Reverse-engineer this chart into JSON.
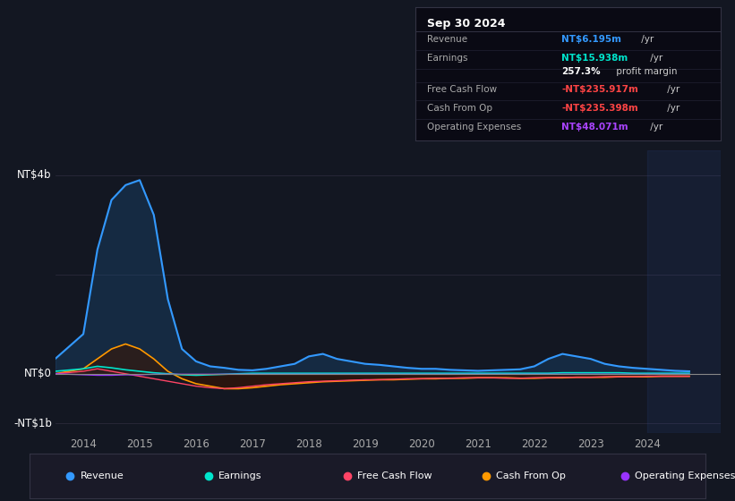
{
  "bg_color": "#131722",
  "plot_bg_color": "#131722",
  "title_box": {
    "date": "Sep 30 2024",
    "rows": [
      {
        "label": "Revenue",
        "value": "NT$6.195m",
        "value_color": "#3399ff",
        "suffix": " /yr"
      },
      {
        "label": "Earnings",
        "value": "NT$15.938m",
        "value_color": "#00e5cc",
        "suffix": " /yr"
      },
      {
        "label": "",
        "value": "257.3%",
        "value_color": "#ffffff",
        "suffix": " profit margin"
      },
      {
        "label": "Free Cash Flow",
        "value": "-NT$235.917m",
        "value_color": "#ff4444",
        "suffix": " /yr"
      },
      {
        "label": "Cash From Op",
        "value": "-NT$235.398m",
        "value_color": "#ff4444",
        "suffix": " /yr"
      },
      {
        "label": "Operating Expenses",
        "value": "NT$48.071m",
        "value_color": "#aa44ff",
        "suffix": " /yr"
      }
    ]
  },
  "ylabel_top": "NT$4b",
  "ylabel_zero": "NT$0",
  "ylabel_bottom": "-NT$1b",
  "x_ticks": [
    2014,
    2015,
    2016,
    2017,
    2018,
    2019,
    2020,
    2021,
    2022,
    2023,
    2024
  ],
  "legend": [
    {
      "label": "Revenue",
      "color": "#3399ff"
    },
    {
      "label": "Earnings",
      "color": "#00e5cc"
    },
    {
      "label": "Free Cash Flow",
      "color": "#ff4466"
    },
    {
      "label": "Cash From Op",
      "color": "#ff9900"
    },
    {
      "label": "Operating Expenses",
      "color": "#9933ff"
    }
  ],
  "series": {
    "x": [
      2013.5,
      2014.0,
      2014.25,
      2014.5,
      2014.75,
      2015.0,
      2015.25,
      2015.5,
      2015.75,
      2016.0,
      2016.25,
      2016.5,
      2016.75,
      2017.0,
      2017.25,
      2017.5,
      2017.75,
      2018.0,
      2018.25,
      2018.5,
      2018.75,
      2019.0,
      2019.25,
      2019.5,
      2019.75,
      2020.0,
      2020.25,
      2020.5,
      2020.75,
      2021.0,
      2021.25,
      2021.5,
      2021.75,
      2022.0,
      2022.25,
      2022.5,
      2022.75,
      2023.0,
      2023.25,
      2023.5,
      2023.75,
      2024.0,
      2024.25,
      2024.5,
      2024.75
    ],
    "revenue": [
      0.3,
      0.8,
      2.5,
      3.5,
      3.8,
      3.9,
      3.2,
      1.5,
      0.5,
      0.25,
      0.15,
      0.12,
      0.08,
      0.07,
      0.1,
      0.15,
      0.2,
      0.35,
      0.4,
      0.3,
      0.25,
      0.2,
      0.18,
      0.15,
      0.12,
      0.1,
      0.1,
      0.08,
      0.07,
      0.06,
      0.07,
      0.08,
      0.09,
      0.15,
      0.3,
      0.4,
      0.35,
      0.3,
      0.2,
      0.15,
      0.12,
      0.1,
      0.08,
      0.06,
      0.05
    ],
    "earnings": [
      0.05,
      0.1,
      0.15,
      0.12,
      0.08,
      0.05,
      0.02,
      0.0,
      -0.02,
      -0.03,
      -0.02,
      -0.01,
      0.0,
      0.01,
      0.01,
      0.01,
      0.01,
      0.01,
      0.01,
      0.01,
      0.01,
      0.01,
      0.01,
      0.01,
      0.01,
      0.01,
      0.01,
      0.01,
      0.01,
      0.01,
      0.01,
      0.01,
      0.01,
      0.01,
      0.01,
      0.02,
      0.02,
      0.02,
      0.02,
      0.02,
      0.01,
      0.01,
      0.01,
      0.01,
      0.01
    ],
    "cashfromop": [
      0.0,
      0.1,
      0.3,
      0.5,
      0.6,
      0.5,
      0.3,
      0.05,
      -0.1,
      -0.2,
      -0.25,
      -0.3,
      -0.3,
      -0.28,
      -0.25,
      -0.22,
      -0.2,
      -0.18,
      -0.16,
      -0.15,
      -0.14,
      -0.13,
      -0.12,
      -0.12,
      -0.11,
      -0.1,
      -0.1,
      -0.09,
      -0.09,
      -0.08,
      -0.08,
      -0.08,
      -0.09,
      -0.09,
      -0.08,
      -0.08,
      -0.07,
      -0.07,
      -0.07,
      -0.06,
      -0.06,
      -0.06,
      -0.05,
      -0.05,
      -0.05
    ],
    "freecashflow": [
      0.0,
      0.05,
      0.1,
      0.05,
      0.0,
      -0.05,
      -0.1,
      -0.15,
      -0.2,
      -0.25,
      -0.28,
      -0.3,
      -0.28,
      -0.25,
      -0.22,
      -0.2,
      -0.18,
      -0.16,
      -0.15,
      -0.14,
      -0.13,
      -0.12,
      -0.12,
      -0.11,
      -0.1,
      -0.1,
      -0.09,
      -0.09,
      -0.08,
      -0.08,
      -0.08,
      -0.09,
      -0.09,
      -0.08,
      -0.08,
      -0.07,
      -0.07,
      -0.07,
      -0.06,
      -0.06,
      -0.06,
      -0.05,
      -0.05,
      -0.05,
      -0.05
    ],
    "opex": [
      0.0,
      -0.02,
      -0.03,
      -0.03,
      -0.02,
      -0.02,
      -0.01,
      -0.01,
      -0.01,
      -0.01,
      -0.01,
      -0.01,
      -0.01,
      -0.01,
      -0.01,
      -0.01,
      -0.01,
      -0.01,
      -0.01,
      -0.01,
      -0.01,
      -0.01,
      -0.01,
      -0.01,
      -0.01,
      -0.01,
      -0.01,
      -0.01,
      -0.01,
      -0.01,
      -0.01,
      -0.01,
      -0.01,
      -0.01,
      -0.01,
      -0.01,
      -0.01,
      -0.01,
      -0.01,
      -0.01,
      -0.01,
      -0.01,
      -0.01,
      -0.01,
      -0.01
    ]
  }
}
